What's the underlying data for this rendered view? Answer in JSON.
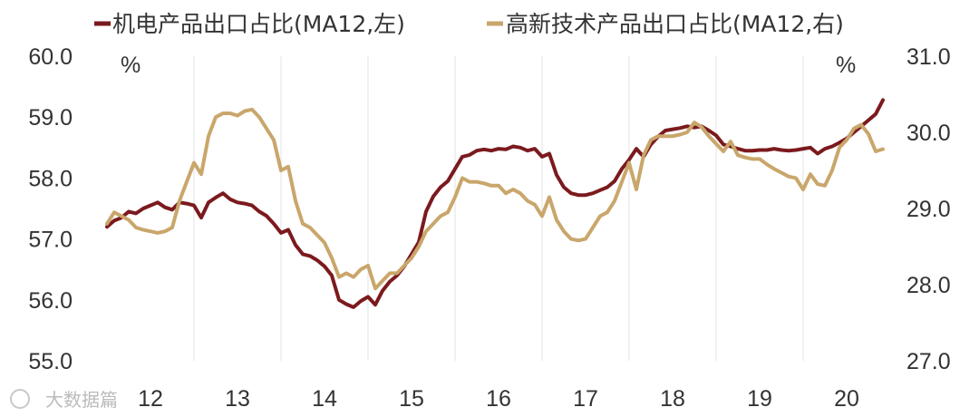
{
  "watermark": "大数据篇",
  "chart_data": {
    "type": "line",
    "legend_position": "top",
    "grid": "vertical",
    "x_ticks": [
      "12",
      "13",
      "14",
      "15",
      "16",
      "17",
      "18",
      "19",
      "20"
    ],
    "left_axis": {
      "unit": "%",
      "ylim": [
        55.0,
        60.0
      ],
      "ticks": [
        "55.0",
        "56.0",
        "57.0",
        "58.0",
        "59.0",
        "60.0"
      ]
    },
    "right_axis": {
      "unit": "%",
      "ylim": [
        27.0,
        31.0
      ],
      "ticks": [
        "27.0",
        "28.0",
        "29.0",
        "30.0",
        "31.0"
      ]
    },
    "series": [
      {
        "name": "机电产品出口占比(MA12,左)",
        "axis": "left",
        "color": "#7b1a1e",
        "x": [
          2012.0,
          2012.083,
          2012.167,
          2012.25,
          2012.333,
          2012.417,
          2012.5,
          2012.583,
          2012.667,
          2012.75,
          2012.833,
          2012.917,
          2013.0,
          2013.083,
          2013.167,
          2013.25,
          2013.333,
          2013.417,
          2013.5,
          2013.583,
          2013.667,
          2013.75,
          2013.833,
          2013.917,
          2014.0,
          2014.083,
          2014.167,
          2014.25,
          2014.333,
          2014.417,
          2014.5,
          2014.583,
          2014.667,
          2014.75,
          2014.833,
          2014.917,
          2015.0,
          2015.083,
          2015.167,
          2015.25,
          2015.333,
          2015.417,
          2015.5,
          2015.583,
          2015.667,
          2015.75,
          2015.833,
          2015.917,
          2016.0,
          2016.083,
          2016.167,
          2016.25,
          2016.333,
          2016.417,
          2016.5,
          2016.583,
          2016.667,
          2016.75,
          2016.833,
          2016.917,
          2017.0,
          2017.083,
          2017.167,
          2017.25,
          2017.333,
          2017.417,
          2017.5,
          2017.583,
          2017.667,
          2017.75,
          2017.833,
          2017.917,
          2018.0,
          2018.083,
          2018.167,
          2018.25,
          2018.333,
          2018.417,
          2018.5,
          2018.583,
          2018.667,
          2018.75,
          2018.833,
          2018.917,
          2019.0,
          2019.083,
          2019.167,
          2019.25,
          2019.333,
          2019.417,
          2019.5,
          2019.583,
          2019.667,
          2019.75,
          2019.833,
          2019.917,
          2020.0,
          2020.083,
          2020.167,
          2020.25,
          2020.333,
          2020.417,
          2020.5,
          2020.583,
          2020.667,
          2020.75,
          2020.833,
          2020.917
        ],
        "values": [
          57.2,
          57.3,
          57.35,
          57.45,
          57.42,
          57.5,
          57.55,
          57.6,
          57.52,
          57.48,
          57.6,
          57.58,
          57.55,
          57.35,
          57.6,
          57.68,
          57.75,
          57.65,
          57.6,
          57.58,
          57.55,
          57.45,
          57.38,
          57.25,
          57.1,
          57.15,
          56.9,
          56.75,
          56.72,
          56.65,
          56.55,
          56.4,
          56.0,
          55.93,
          55.88,
          55.98,
          56.05,
          55.92,
          56.15,
          56.3,
          56.4,
          56.55,
          56.75,
          56.95,
          57.45,
          57.7,
          57.85,
          57.95,
          58.15,
          58.35,
          58.38,
          58.45,
          58.47,
          58.45,
          58.48,
          58.47,
          58.52,
          58.5,
          58.45,
          58.48,
          58.35,
          58.4,
          58.05,
          57.85,
          57.75,
          57.72,
          57.72,
          57.75,
          57.8,
          57.85,
          57.95,
          58.15,
          58.3,
          58.48,
          58.35,
          58.55,
          58.68,
          58.78,
          58.8,
          58.82,
          58.85,
          58.83,
          58.85,
          58.78,
          58.7,
          58.55,
          58.52,
          58.48,
          58.45,
          58.45,
          58.46,
          58.46,
          58.48,
          58.46,
          58.45,
          58.46,
          58.48,
          58.5,
          58.4,
          58.48,
          58.52,
          58.58,
          58.65,
          58.75,
          58.85,
          58.95,
          59.05,
          59.28
        ]
      },
      {
        "name": "高新技术产品出口占比(MA12,右)",
        "axis": "right",
        "color": "#c9a66b",
        "x": [
          2012.0,
          2012.083,
          2012.167,
          2012.25,
          2012.333,
          2012.417,
          2012.5,
          2012.583,
          2012.667,
          2012.75,
          2012.833,
          2012.917,
          2013.0,
          2013.083,
          2013.167,
          2013.25,
          2013.333,
          2013.417,
          2013.5,
          2013.583,
          2013.667,
          2013.75,
          2013.833,
          2013.917,
          2014.0,
          2014.083,
          2014.167,
          2014.25,
          2014.333,
          2014.417,
          2014.5,
          2014.583,
          2014.667,
          2014.75,
          2014.833,
          2014.917,
          2015.0,
          2015.083,
          2015.167,
          2015.25,
          2015.333,
          2015.417,
          2015.5,
          2015.583,
          2015.667,
          2015.75,
          2015.833,
          2015.917,
          2016.0,
          2016.083,
          2016.167,
          2016.25,
          2016.333,
          2016.417,
          2016.5,
          2016.583,
          2016.667,
          2016.75,
          2016.833,
          2016.917,
          2017.0,
          2017.083,
          2017.167,
          2017.25,
          2017.333,
          2017.417,
          2017.5,
          2017.583,
          2017.667,
          2017.75,
          2017.833,
          2017.917,
          2018.0,
          2018.083,
          2018.167,
          2018.25,
          2018.333,
          2018.417,
          2018.5,
          2018.583,
          2018.667,
          2018.75,
          2018.833,
          2018.917,
          2019.0,
          2019.083,
          2019.167,
          2019.25,
          2019.333,
          2019.417,
          2019.5,
          2019.583,
          2019.667,
          2019.75,
          2019.833,
          2019.917,
          2020.0,
          2020.083,
          2020.167,
          2020.25,
          2020.333,
          2020.417,
          2020.5,
          2020.583,
          2020.667,
          2020.75,
          2020.833,
          2020.917
        ],
        "values": [
          28.8,
          28.95,
          28.9,
          28.85,
          28.75,
          28.72,
          28.7,
          28.68,
          28.7,
          28.75,
          29.1,
          29.35,
          29.6,
          29.45,
          29.95,
          30.2,
          30.25,
          30.25,
          30.22,
          30.28,
          30.3,
          30.2,
          30.05,
          29.9,
          29.5,
          29.55,
          29.1,
          28.8,
          28.75,
          28.65,
          28.55,
          28.35,
          28.1,
          28.15,
          28.1,
          28.2,
          28.25,
          27.95,
          28.05,
          28.15,
          28.15,
          28.25,
          28.35,
          28.5,
          28.7,
          28.8,
          28.9,
          28.95,
          29.15,
          29.4,
          29.35,
          29.35,
          29.33,
          29.3,
          29.3,
          29.2,
          29.25,
          29.2,
          29.1,
          29.05,
          28.9,
          29.15,
          28.85,
          28.7,
          28.6,
          28.58,
          28.6,
          28.75,
          28.9,
          28.95,
          29.1,
          29.35,
          29.6,
          29.25,
          29.7,
          29.9,
          29.95,
          29.95,
          29.95,
          29.97,
          30.0,
          30.13,
          30.07,
          29.95,
          29.85,
          29.75,
          29.88,
          29.7,
          29.67,
          29.65,
          29.65,
          29.58,
          29.52,
          29.47,
          29.42,
          29.4,
          29.25,
          29.45,
          29.32,
          29.3,
          29.5,
          29.8,
          29.9,
          30.05,
          30.1,
          29.98,
          29.75,
          29.78
        ]
      }
    ]
  }
}
